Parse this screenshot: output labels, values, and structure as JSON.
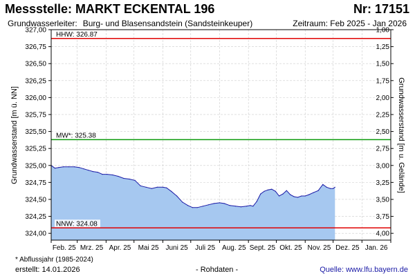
{
  "header": {
    "title": "Messstelle: MARKT ECKENTAL 196",
    "number": "Nr: 17151",
    "aquifer_label": "Grundwasserleiter:",
    "aquifer_value": "Burg- und Blasensandstein (Sandsteinkeuper)",
    "period": "Zeitraum: Feb 2025 - Jan 2026"
  },
  "footer": {
    "note": "* Abflussjahr (1985-2024)",
    "created": "erstellt:  14.01.2026",
    "center": "- Rohdaten -",
    "source_label": "Quelle:",
    "source_value": "www.lfu.bayern.de"
  },
  "colors": {
    "fill": "#a6c8f0",
    "line": "#1a1aa6",
    "hhw": "#e00000",
    "mw": "#0a9a0a",
    "nnw": "#e00000",
    "grid": "#cccccc"
  },
  "chart_data": {
    "type": "area",
    "xlabel": "",
    "ylabel": "Grundwasserstand [m ü. NN]",
    "ylabel_right": "Grundwasserstand [m u. Gelände]",
    "ylim": [
      323.9,
      327.0
    ],
    "ylim_right_equivalent": [
      4.1,
      1.0
    ],
    "y_ticks": [
      "324,00",
      "324,25",
      "324,50",
      "324,75",
      "325,00",
      "325,25",
      "325,50",
      "325,75",
      "326,00",
      "326,25",
      "326,50",
      "326,75",
      "327,00"
    ],
    "y_tick_values": [
      324.0,
      324.25,
      324.5,
      324.75,
      325.0,
      325.25,
      325.5,
      325.75,
      326.0,
      326.25,
      326.5,
      326.75,
      327.0
    ],
    "y_right_ticks": [
      "4,00",
      "3,75",
      "3,50",
      "3,25",
      "3,00",
      "2,75",
      "2,50",
      "2,25",
      "2,00",
      "1,75",
      "1,50",
      "1,25",
      "1,00"
    ],
    "y_right_tick_values": [
      4.0,
      3.75,
      3.5,
      3.25,
      3.0,
      2.75,
      2.5,
      2.25,
      2.0,
      1.75,
      1.5,
      1.25,
      1.0
    ],
    "x_ticks": [
      "Feb. 25",
      "Mrz. 25",
      "Apr. 25",
      "Mai 25",
      "Juni 25",
      "Juli 25",
      "Aug. 25",
      "Sept. 25",
      "Okt. 25",
      "Nov. 25",
      "Dez. 25",
      "Jan. 26"
    ],
    "reference_lines": [
      {
        "label": "HHW: 326.87",
        "value": 326.87,
        "color": "#e00000"
      },
      {
        "label": "MW*: 325.38",
        "value": 325.38,
        "color": "#0a9a0a"
      },
      {
        "label": "NNW: 324.08",
        "value": 324.08,
        "color": "#e00000"
      }
    ],
    "series": [
      {
        "x": [
          "2025-02-01",
          "2025-02-05",
          "2025-02-09",
          "2025-02-14",
          "2025-02-20",
          "2025-02-26",
          "2025-03-03",
          "2025-03-08",
          "2025-03-13",
          "2025-03-18",
          "2025-03-23",
          "2025-03-28",
          "2025-04-02",
          "2025-04-08",
          "2025-04-14",
          "2025-04-20",
          "2025-04-26",
          "2025-05-02",
          "2025-05-08",
          "2025-05-14",
          "2025-05-20",
          "2025-05-26",
          "2025-06-01",
          "2025-06-05",
          "2025-06-10",
          "2025-06-16",
          "2025-06-22",
          "2025-06-28",
          "2025-07-03",
          "2025-07-08",
          "2025-07-14",
          "2025-07-20",
          "2025-07-26",
          "2025-08-01",
          "2025-08-06",
          "2025-08-12",
          "2025-08-18",
          "2025-08-24",
          "2025-08-30",
          "2025-09-03",
          "2025-09-06",
          "2025-09-10",
          "2025-09-14",
          "2025-09-18",
          "2025-09-22",
          "2025-09-26",
          "2025-09-30",
          "2025-10-04",
          "2025-10-08",
          "2025-10-12",
          "2025-10-16",
          "2025-10-20",
          "2025-10-24",
          "2025-10-28",
          "2025-11-01",
          "2025-11-05",
          "2025-11-10",
          "2025-11-15",
          "2025-11-20",
          "2025-11-24",
          "2025-11-28",
          "2025-12-01",
          "2025-12-03"
        ],
        "values": [
          325.0,
          324.96,
          324.97,
          324.98,
          324.98,
          324.98,
          324.97,
          324.95,
          324.93,
          324.91,
          324.9,
          324.87,
          324.87,
          324.86,
          324.84,
          324.81,
          324.8,
          324.78,
          324.7,
          324.68,
          324.66,
          324.68,
          324.68,
          324.67,
          324.62,
          324.55,
          324.46,
          324.41,
          324.38,
          324.38,
          324.4,
          324.42,
          324.44,
          324.45,
          324.44,
          324.41,
          324.4,
          324.39,
          324.4,
          324.41,
          324.4,
          324.47,
          324.58,
          324.62,
          324.64,
          324.65,
          324.62,
          324.55,
          324.58,
          324.63,
          324.57,
          324.54,
          324.53,
          324.55,
          324.55,
          324.57,
          324.6,
          324.63,
          324.72,
          324.68,
          324.66,
          324.66,
          324.68
        ]
      }
    ]
  }
}
